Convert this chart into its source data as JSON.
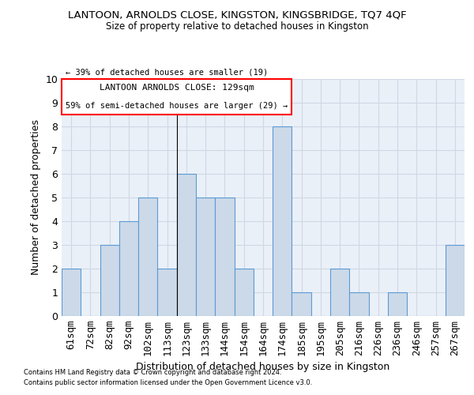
{
  "title": "LANTOON, ARNOLDS CLOSE, KINGSTON, KINGSBRIDGE, TQ7 4QF",
  "subtitle": "Size of property relative to detached houses in Kingston",
  "xlabel": "Distribution of detached houses by size in Kingston",
  "ylabel": "Number of detached properties",
  "categories": [
    "61sqm",
    "72sqm",
    "82sqm",
    "92sqm",
    "102sqm",
    "113sqm",
    "123sqm",
    "133sqm",
    "144sqm",
    "154sqm",
    "164sqm",
    "174sqm",
    "185sqm",
    "195sqm",
    "205sqm",
    "216sqm",
    "226sqm",
    "236sqm",
    "246sqm",
    "257sqm",
    "267sqm"
  ],
  "values": [
    2,
    0,
    3,
    4,
    5,
    2,
    6,
    5,
    5,
    2,
    0,
    8,
    1,
    0,
    2,
    1,
    0,
    1,
    0,
    0,
    3
  ],
  "bar_color_light": "#ccd9e8",
  "bar_edge_color": "#5b9bd5",
  "ylim": [
    0,
    10
  ],
  "yticks": [
    0,
    1,
    2,
    3,
    4,
    5,
    6,
    7,
    8,
    9,
    10
  ],
  "grid_color": "#d0d8e4",
  "bg_color": "#eaf0f8",
  "property_label": "LANTOON ARNOLDS CLOSE: 129sqm",
  "arrow_left_text": "← 39% of detached houses are smaller (19)",
  "arrow_right_text": "59% of semi-detached houses are larger (29) →",
  "vline_index": 5.5,
  "footnote1": "Contains HM Land Registry data © Crown copyright and database right 2024.",
  "footnote2": "Contains public sector information licensed under the Open Government Licence v3.0."
}
